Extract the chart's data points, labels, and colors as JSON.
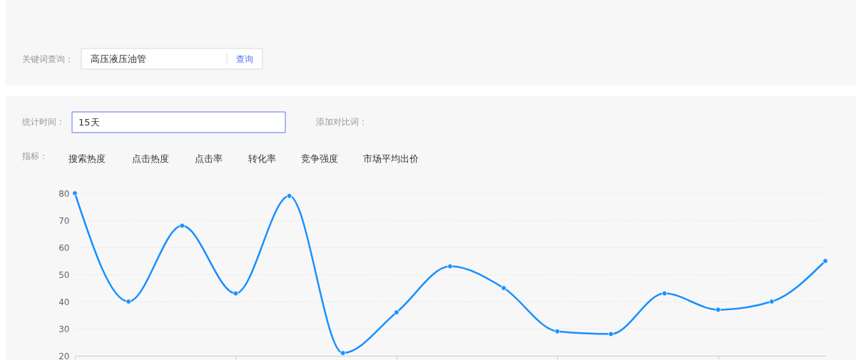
{
  "chart_data": {
    "type": "line",
    "categories": [
      null,
      null,
      null,
      null,
      null,
      null,
      null,
      null,
      null,
      null,
      null,
      null,
      null,
      null,
      null
    ],
    "series": [
      {
        "color": "#1890ff",
        "values": [
          80,
          40,
          68,
          43,
          79,
          21,
          36,
          53,
          45,
          29,
          28,
          43,
          37,
          40,
          55
        ]
      }
    ],
    "ylim": [
      20,
      80
    ],
    "yticks": [
      20,
      30,
      40,
      50,
      60,
      70,
      80
    ],
    "grid": "y",
    "marker": "circle",
    "line_style": "solid",
    "annotations": [
      "关键词查询：",
      "高压液压油管",
      "查询",
      "统计时间：",
      "15天",
      "添加对比词：",
      "指标：",
      "搜索热度",
      "点击热度",
      "点击率",
      "转化率",
      "竞争强度",
      "市场平均出价"
    ]
  }
}
